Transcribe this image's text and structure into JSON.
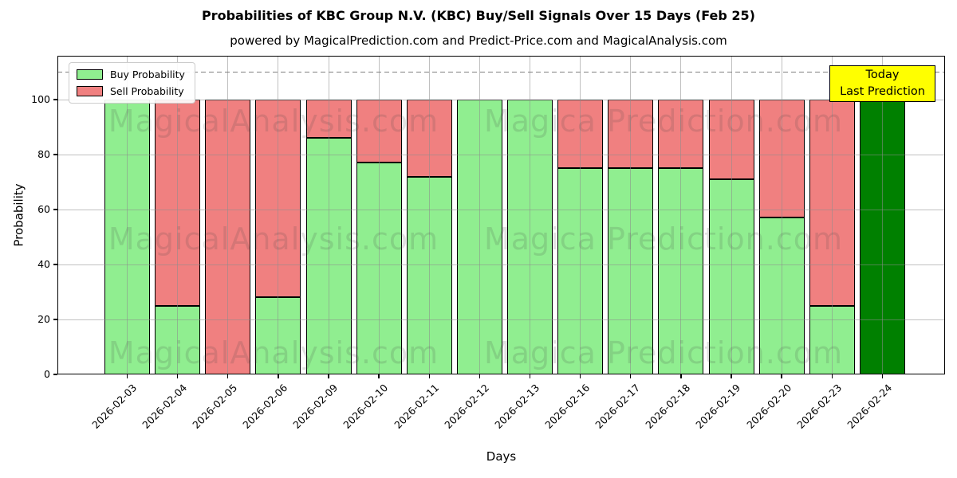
{
  "chart_data": {
    "type": "bar",
    "stacked": true,
    "title": "Probabilities of KBC Group N.V. (KBC) Buy/Sell Signals Over 15 Days (Feb 25)",
    "subtitle": "powered by MagicalPrediction.com and Predict-Price.com and MagicalAnalysis.com",
    "xlabel": "Days",
    "ylabel": "Probability",
    "categories": [
      "2026-02-03",
      "2026-02-04",
      "2026-02-05",
      "2026-02-06",
      "2026-02-09",
      "2026-02-10",
      "2026-02-11",
      "2026-02-12",
      "2026-02-13",
      "2026-02-16",
      "2026-02-17",
      "2026-02-18",
      "2026-02-19",
      "2026-02-20",
      "2026-02-23",
      "2026-02-24"
    ],
    "series": [
      {
        "name": "Buy Probability",
        "color": "#90ee90",
        "values": [
          100,
          25,
          0,
          28,
          86,
          77,
          72,
          100,
          100,
          75,
          75,
          75,
          71,
          57,
          25,
          100
        ]
      },
      {
        "name": "Sell Probability",
        "color": "#f08080",
        "values": [
          0,
          75,
          100,
          72,
          14,
          23,
          28,
          0,
          0,
          25,
          25,
          25,
          29,
          43,
          75,
          0
        ]
      }
    ],
    "today_bar": {
      "category": "2026-02-24",
      "color": "#008000"
    },
    "bar_edge_color": "#000000",
    "yticks": [
      0,
      20,
      40,
      60,
      80,
      100
    ],
    "ylim": [
      0,
      116
    ],
    "dashed_line_y": 110,
    "grid": true,
    "legend_position": "upper left"
  },
  "annotation": {
    "line1": "Today",
    "line2": "Last Prediction",
    "bg_color": "#ffff00",
    "border_color": "#000000"
  },
  "watermarks": {
    "left_text": "MagicalAnalysis.com",
    "right_text": "Magica Prediction.com"
  },
  "colors": {
    "dashed_line": "#808080",
    "grid": "#b0b0b0",
    "background": "#ffffff"
  }
}
